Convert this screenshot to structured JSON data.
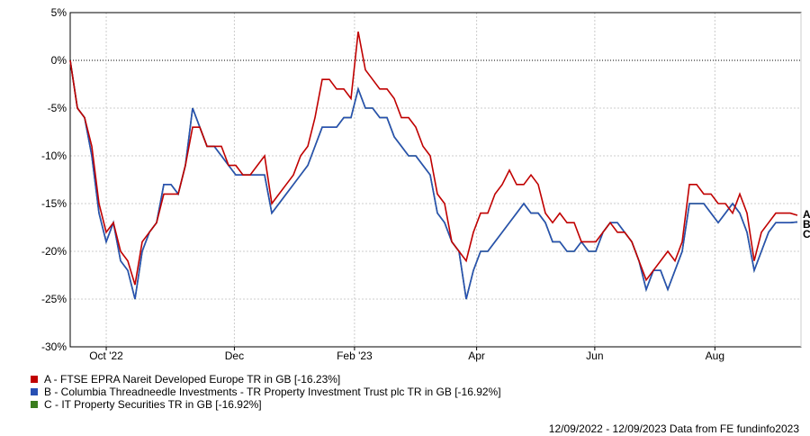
{
  "chart_data": {
    "type": "line",
    "title": "",
    "xlabel": "",
    "ylabel": "",
    "ylim": [
      -30,
      5
    ],
    "yticks": [
      5,
      0,
      -5,
      -10,
      -15,
      -20,
      -25,
      -30
    ],
    "ytick_labels": [
      "5%",
      "0%",
      "-5%",
      "-10%",
      "-15%",
      "-20%",
      "-25%",
      "-30%"
    ],
    "x_range_days": [
      0,
      365
    ],
    "xticks": [
      {
        "label": "Oct '22",
        "day": 18
      },
      {
        "label": "Dec",
        "day": 82
      },
      {
        "label": "Feb '23",
        "day": 142
      },
      {
        "label": "Apr",
        "day": 203
      },
      {
        "label": "Jun",
        "day": 262
      },
      {
        "label": "Aug",
        "day": 322
      }
    ],
    "grid": true,
    "series": [
      {
        "name": "A - FTSE EPRA Nareit Developed Europe TR in GB [-16.23%]",
        "end_label": "A",
        "color": "#c00000",
        "values": [
          0,
          -5,
          -6,
          -9,
          -15,
          -18,
          -17,
          -20,
          -21,
          -23.5,
          -19,
          -18,
          -17,
          -14,
          -14,
          -14,
          -11,
          -7,
          -7,
          -9,
          -9,
          -9,
          -11,
          -11,
          -12,
          -12,
          -11,
          -10,
          -15,
          -14,
          -13,
          -12,
          -10,
          -9,
          -6,
          -2,
          -2,
          -3,
          -3,
          -4,
          3,
          -1,
          -2,
          -3,
          -3,
          -4,
          -6,
          -6,
          -7,
          -9,
          -10,
          -14,
          -15,
          -19,
          -20,
          -21,
          -18,
          -16,
          -16,
          -14,
          -13,
          -11.5,
          -13,
          -13,
          -12,
          -13,
          -16,
          -17,
          -16,
          -17,
          -17,
          -19,
          -19,
          -19,
          -18,
          -17,
          -18,
          -18,
          -19,
          -21,
          -23,
          -22,
          -21,
          -20,
          -21,
          -19,
          -13,
          -13,
          -14,
          -14,
          -15,
          -15,
          -16,
          -14,
          -16,
          -21,
          -18,
          -17,
          -16,
          -16,
          -16,
          -16.23
        ]
      },
      {
        "name": "B - Columbia Threadneedle Investments - TR Property Investment Trust plc TR in GB [-16.92%]",
        "end_label": "B",
        "color": "#2850b4",
        "values": [
          0,
          -5,
          -6,
          -10,
          -16,
          -19,
          -17,
          -21,
          -22,
          -25,
          -20,
          -18,
          -17,
          -13,
          -13,
          -14,
          -11,
          -5,
          -7,
          -9,
          -9,
          -10,
          -11,
          -12,
          -12,
          -12,
          -12,
          -12,
          -16,
          -15,
          -14,
          -13,
          -12,
          -11,
          -9,
          -7,
          -7,
          -7,
          -6,
          -6,
          -3,
          -5,
          -5,
          -6,
          -6,
          -8,
          -9,
          -10,
          -10,
          -11,
          -12,
          -16,
          -17,
          -19,
          -20,
          -25,
          -22,
          -20,
          -20,
          -19,
          -18,
          -17,
          -16,
          -15,
          -16,
          -16,
          -17,
          -19,
          -19,
          -20,
          -20,
          -19,
          -20,
          -20,
          -18,
          -17,
          -17,
          -18,
          -19,
          -21,
          -24,
          -22,
          -22,
          -24,
          -22,
          -20,
          -15,
          -15,
          -15,
          -16,
          -17,
          -16,
          -15,
          -16,
          -18,
          -22,
          -20,
          -18,
          -17,
          -17,
          -17,
          -16.92
        ]
      },
      {
        "name": "C - IT Property Securities TR in GB [-16.92%]",
        "end_label": "C",
        "color": "#3a7d1e",
        "values": [
          0,
          -5,
          -6,
          -10,
          -16,
          -19,
          -17,
          -21,
          -22,
          -25,
          -20,
          -18,
          -17,
          -13,
          -13,
          -14,
          -11,
          -5,
          -7,
          -9,
          -9,
          -10,
          -11,
          -12,
          -12,
          -12,
          -12,
          -12,
          -16,
          -15,
          -14,
          -13,
          -12,
          -11,
          -9,
          -7,
          -7,
          -7,
          -6,
          -6,
          -3,
          -5,
          -5,
          -6,
          -6,
          -8,
          -9,
          -10,
          -10,
          -11,
          -12,
          -16,
          -17,
          -19,
          -20,
          -25,
          -22,
          -20,
          -20,
          -19,
          -18,
          -17,
          -16,
          -15,
          -16,
          -16,
          -17,
          -19,
          -19,
          -20,
          -20,
          -19,
          -20,
          -20,
          -18,
          -17,
          -17,
          -18,
          -19,
          -21,
          -24,
          -22,
          -22,
          -24,
          -22,
          -20,
          -15,
          -15,
          -15,
          -16,
          -17,
          -16,
          -15,
          -16,
          -18,
          -22,
          -20,
          -18,
          -17,
          -17,
          -17,
          -16.92
        ]
      }
    ]
  },
  "footer": "12/09/2022 - 12/09/2023 Data from FE fundinfo2023"
}
